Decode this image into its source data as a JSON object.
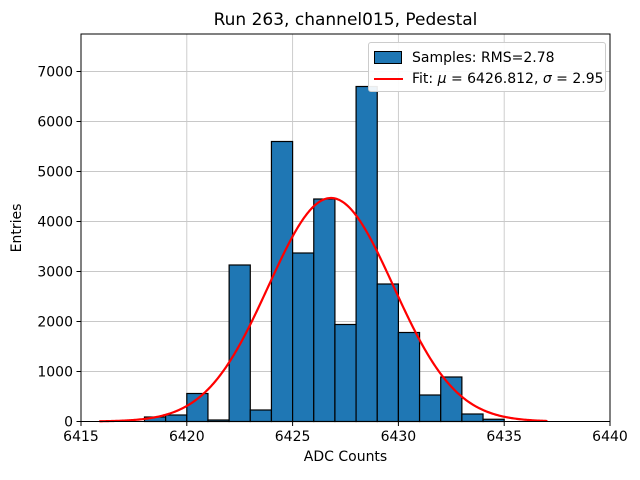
{
  "chart_data": {
    "type": "bar",
    "subtype": "histogram-with-gaussian-fit",
    "title": "Run 263, channel015, Pedestal",
    "xlabel": "ADC Counts",
    "ylabel": "Entries",
    "xlim": [
      6415,
      6440
    ],
    "ylim": [
      0,
      7750
    ],
    "xticks": [
      6415,
      6420,
      6425,
      6430,
      6435,
      6440
    ],
    "yticks": [
      0,
      1000,
      2000,
      3000,
      4000,
      5000,
      6000,
      7000
    ],
    "grid": true,
    "bins": {
      "start": 6418,
      "width": 1,
      "counts": [
        90,
        130,
        560,
        30,
        3130,
        230,
        5600,
        3370,
        4450,
        1940,
        6700,
        2750,
        1780,
        530,
        890,
        150,
        45
      ]
    },
    "fit_curve": {
      "shape": "gaussian",
      "mu": 6426.812,
      "sigma": 2.95,
      "amplitude": 4470,
      "x_min": 6415.9,
      "x_max": 6437.0
    },
    "legend": {
      "position": "upper right",
      "samples_label": "Samples: RMS=2.78",
      "fit_label": "Fit: μ = 6426.812, σ = 2.95",
      "fit_label_parts": {
        "prefix": "Fit: ",
        "mu_symbol": "μ",
        "mu_value": " = 6426.812, ",
        "sigma_symbol": "σ",
        "sigma_value": " = 2.95"
      }
    },
    "colors": {
      "bar_fill": "#1f77b4",
      "bar_edge": "#000000",
      "fit_line": "#ff0000",
      "grid": "#c8c8c8",
      "spine": "#000000",
      "background": "#ffffff"
    }
  }
}
